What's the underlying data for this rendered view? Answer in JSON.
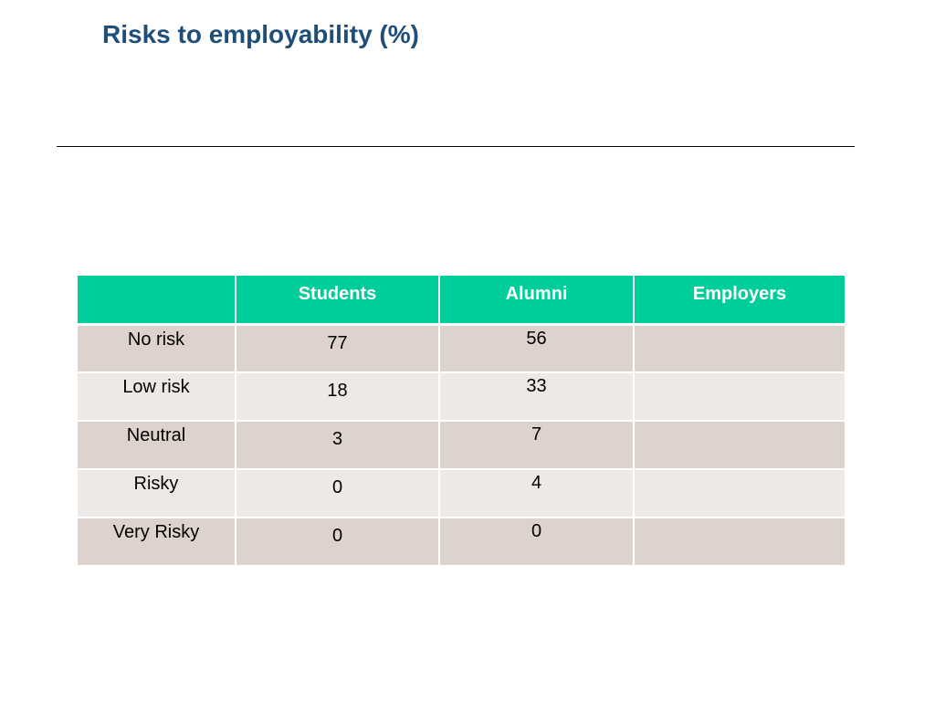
{
  "slide": {
    "title": "Risks to employability (%)"
  },
  "table": {
    "headers": [
      "",
      "Students",
      "Alumni",
      "Employers"
    ],
    "rows": [
      {
        "label": "No risk",
        "students": "77",
        "alumni": "56",
        "employers": ""
      },
      {
        "label": "Low risk",
        "students": "18",
        "alumni": "33",
        "employers": ""
      },
      {
        "label": "Neutral",
        "students": "3",
        "alumni": "7",
        "employers": ""
      },
      {
        "label": "Risky",
        "students": "0",
        "alumni": "4",
        "employers": ""
      },
      {
        "label": "Very Risky",
        "students": "0",
        "alumni": "0",
        "employers": ""
      }
    ]
  },
  "colors": {
    "title": "#1f4e79",
    "header_bg": "#00ce9a",
    "row_dark": "#ddd2cc",
    "row_light": "#ede9e6"
  }
}
